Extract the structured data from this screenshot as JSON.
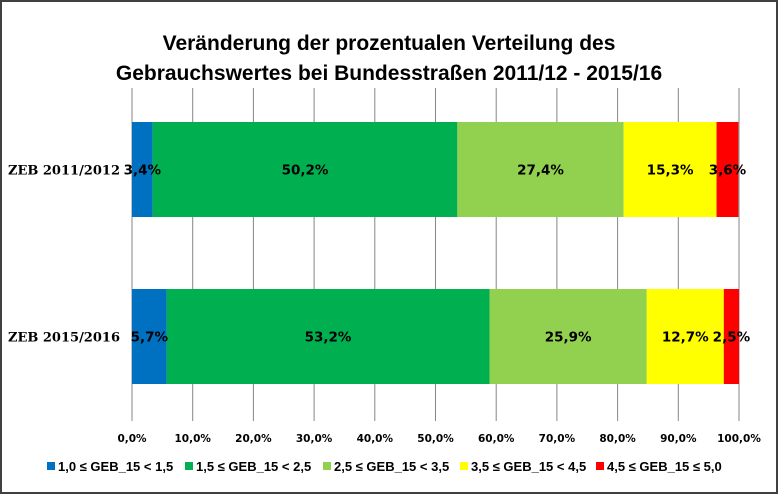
{
  "chart_data": {
    "type": "bar",
    "orientation": "horizontal",
    "stacked": "percent",
    "title": [
      "Veränderung der prozentualen Verteilung des",
      "Gebrauchswertes bei Bundesstraßen 2011/12 - 2015/16"
    ],
    "xlabel": "",
    "ylabel": "",
    "categories": [
      "ZEB 2011/2012",
      "ZEB 2015/2016"
    ],
    "series": [
      {
        "name": "1,0 ≤ GEB_15 < 1,5",
        "color": "#0070C0",
        "values": [
          3.4,
          5.7
        ],
        "labels": [
          "3,4%",
          "5,7%"
        ]
      },
      {
        "name": "1,5 ≤ GEB_15 < 2,5",
        "color": "#00B050",
        "values": [
          50.2,
          53.2
        ],
        "labels": [
          "50,2%",
          "53,2%"
        ]
      },
      {
        "name": "2,5 ≤ GEB_15 < 3,5",
        "color": "#92D050",
        "values": [
          27.4,
          25.9
        ],
        "labels": [
          "27,4%",
          "25,9%"
        ]
      },
      {
        "name": "3,5 ≤ GEB_15 < 4,5",
        "color": "#FFFF00",
        "values": [
          15.3,
          12.7
        ],
        "labels": [
          "15,3%",
          "12,7%"
        ]
      },
      {
        "name": "4,5 ≤ GEB_15 ≤ 5,0",
        "color": "#FF0000",
        "values": [
          3.6,
          2.5
        ],
        "labels": [
          "3,6%",
          "2,5%"
        ]
      }
    ],
    "xlim": [
      0,
      100
    ],
    "xticks": [
      0,
      10,
      20,
      30,
      40,
      50,
      60,
      70,
      80,
      90,
      100
    ],
    "xtick_labels": [
      "0,0%",
      "10,0%",
      "20,0%",
      "30,0%",
      "40,0%",
      "50,0%",
      "60,0%",
      "70,0%",
      "80,0%",
      "90,0%",
      "100,0%"
    ],
    "grid": "vertical",
    "legend": "bottom"
  }
}
